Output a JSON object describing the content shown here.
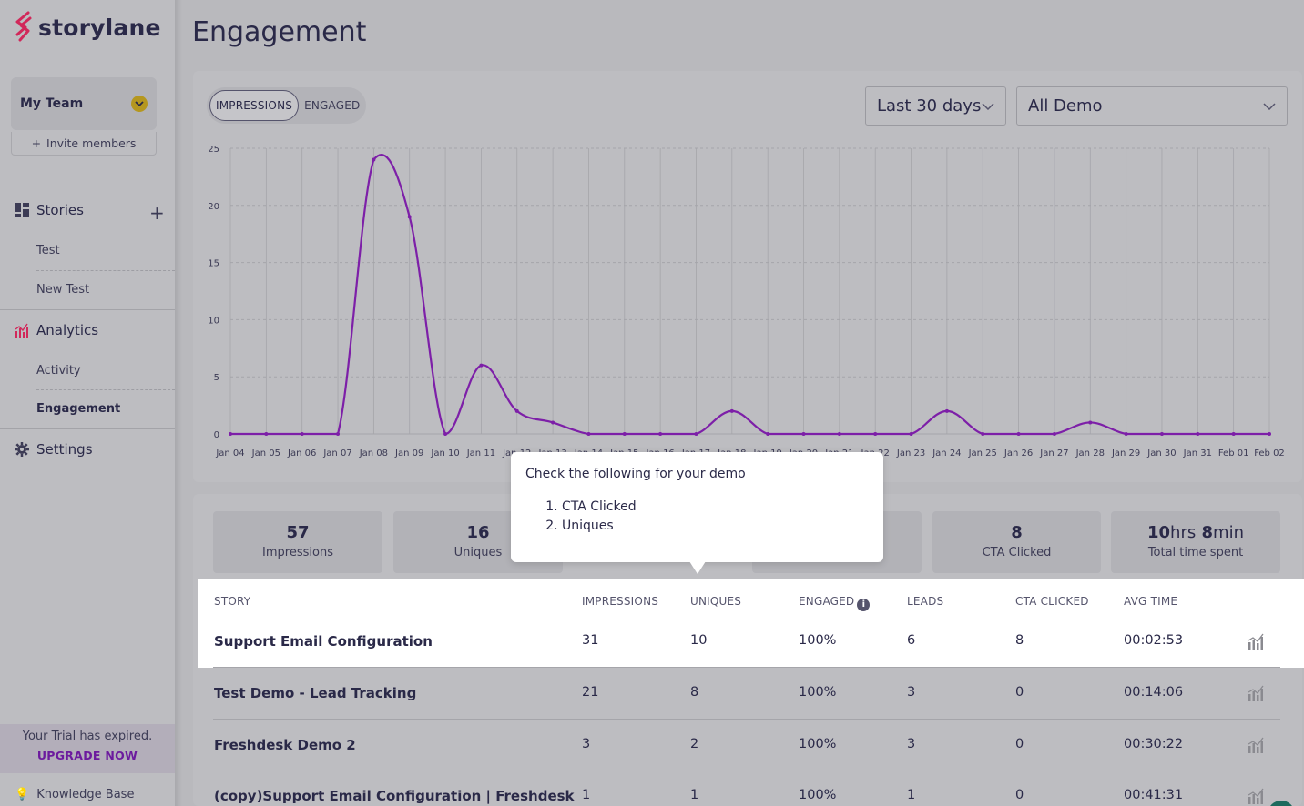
{
  "brand": {
    "name": "storylane",
    "accent": "#d1285a"
  },
  "sidebar": {
    "team": "My Team",
    "invite_label": "Invite members",
    "stories_label": "Stories",
    "stories": [
      "Test",
      "New Test"
    ],
    "analytics_label": "Analytics",
    "analytics_items": [
      "Activity",
      "Engagement"
    ],
    "settings_label": "Settings",
    "trial_text": "Your Trial has expired.",
    "upgrade_label": "UPGRADE NOW",
    "knowledge_base": "Knowledge Base"
  },
  "page": {
    "title": "Engagement"
  },
  "toggle": {
    "impressions": "IMPRESSIONS",
    "engaged": "ENGAGED",
    "active": "IMPRESSIONS"
  },
  "filters": {
    "range": "Last 30 days",
    "demo": "All Demo"
  },
  "chart_data": {
    "type": "line",
    "color": "#7d1fa8",
    "ylim": [
      0,
      25
    ],
    "yticks": [
      0,
      5,
      10,
      15,
      20,
      25
    ],
    "x": [
      "Jan 04",
      "Jan 05",
      "Jan 06",
      "Jan 07",
      "Jan 08",
      "Jan 09",
      "Jan 10",
      "Jan 11",
      "Jan 12",
      "Jan 13",
      "Jan 14",
      "Jan 15",
      "Jan 16",
      "Jan 17",
      "Jan 18",
      "Jan 19",
      "Jan 20",
      "Jan 21",
      "Jan 22",
      "Jan 23",
      "Jan 24",
      "Jan 25",
      "Jan 26",
      "Jan 27",
      "Jan 28",
      "Jan 29",
      "Jan 30",
      "Jan 31",
      "Feb 01",
      "Feb 02"
    ],
    "values": [
      0,
      0,
      0,
      0,
      24,
      19,
      0,
      6,
      2,
      1,
      0,
      0,
      0,
      0,
      2,
      0,
      0,
      0,
      0,
      0,
      2,
      0,
      0,
      0,
      1,
      0,
      0,
      0,
      0,
      0
    ],
    "x_tick_labels": [
      "Jan 04",
      "Jan 05",
      "Jan 06",
      "Jan 07",
      "Jan 08",
      "Jan 09",
      "Jan 10",
      "Jan 11",
      "Jan 12",
      "Jan 13",
      "Jan 14",
      "Jan 15",
      "Jan 16",
      "Jan 17",
      "Jan 18",
      "Jan 19",
      "Jan 20",
      "Jan 21",
      "Jan 22",
      "Jan 23",
      "Jan 24",
      "Jan 25",
      "Jan 26",
      "Jan 27",
      "Jan 28",
      "Jan 29",
      "Jan 30",
      "Jan 31",
      "Feb 01",
      "Feb 02"
    ],
    "grid": true
  },
  "stats": [
    {
      "value": "57",
      "label": "Impressions"
    },
    {
      "value": "16",
      "label": "Uniques"
    },
    {
      "value": "8",
      "label": "CTA Clicked"
    }
  ],
  "total_time": {
    "hrs": "10",
    "hrs_unit": "hrs",
    "min": "8",
    "min_unit": "min",
    "label": "Total time spent"
  },
  "table": {
    "headers": [
      "STORY",
      "IMPRESSIONS",
      "UNIQUES",
      "ENGAGED",
      "LEADS",
      "CTA CLICKED",
      "AVG TIME"
    ],
    "rows": [
      {
        "story": "Support Email Configuration",
        "impressions": "31",
        "uniques": "10",
        "engaged": "100%",
        "leads": "6",
        "cta": "8",
        "avg": "00:02:53"
      },
      {
        "story": "Test Demo - Lead Tracking",
        "impressions": "21",
        "uniques": "8",
        "engaged": "100%",
        "leads": "3",
        "cta": "0",
        "avg": "00:14:06"
      },
      {
        "story": "Freshdesk Demo 2",
        "impressions": "3",
        "uniques": "2",
        "engaged": "100%",
        "leads": "3",
        "cta": "0",
        "avg": "00:30:22"
      },
      {
        "story": "(copy)Support Email Configuration | Freshdesk",
        "impressions": "1",
        "uniques": "1",
        "engaged": "100%",
        "leads": "1",
        "cta": "0",
        "avg": "00:41:31"
      }
    ]
  },
  "tooltip": {
    "title": "Check the following for your demo",
    "items": [
      "CTA Clicked",
      "Uniques"
    ]
  }
}
